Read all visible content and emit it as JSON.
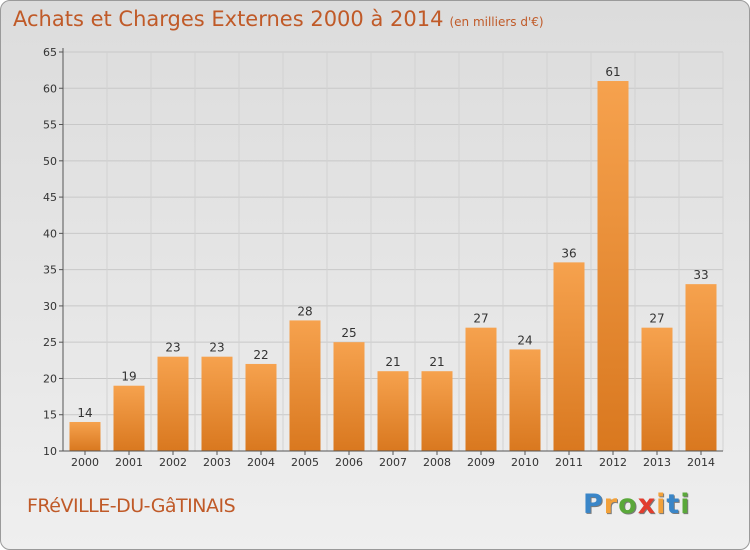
{
  "title": "Achats et Charges Externes 2000 à 2014",
  "subtitle": "(en milliers d'€)",
  "town": "FRéVILLE-DU-GâTINAIS",
  "logo": {
    "letters": [
      "P",
      "r",
      "o",
      "x",
      "i",
      "t",
      "i"
    ],
    "colors": [
      "#3a86c8",
      "#f2a13a",
      "#5aa83a",
      "#e23d2e",
      "#f2a13a",
      "#3a86c8",
      "#5aa83a"
    ]
  },
  "colors": {
    "accent": "#c05a28",
    "bar_light": "#f6a24e",
    "bar_dark": "#d9781f"
  },
  "chart_data": {
    "type": "bar",
    "categories": [
      "2000",
      "2001",
      "2002",
      "2003",
      "2004",
      "2005",
      "2006",
      "2007",
      "2008",
      "2009",
      "2010",
      "2011",
      "2012",
      "2013",
      "2014"
    ],
    "values": [
      14,
      19,
      23,
      23,
      22,
      28,
      25,
      21,
      21,
      27,
      24,
      36,
      61,
      27,
      33
    ],
    "ylim": [
      10,
      65
    ],
    "yticks": [
      10,
      15,
      20,
      25,
      30,
      35,
      40,
      45,
      50,
      55,
      60,
      65
    ],
    "grid": true,
    "data_labels": true
  }
}
